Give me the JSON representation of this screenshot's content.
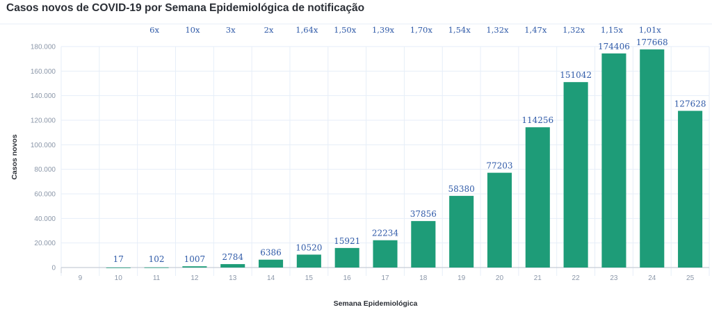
{
  "chart_data": {
    "type": "bar",
    "title": "Casos novos de COVID-19 por Semana Epidemiológica de notificação",
    "xlabel": "Semana Epidemiológica",
    "ylabel": "Casos novos",
    "ylim": [
      0,
      180000
    ],
    "yticks": [
      0,
      20000,
      40000,
      60000,
      80000,
      100000,
      120000,
      140000,
      160000,
      180000
    ],
    "ytick_labels": [
      "0",
      "20.000",
      "40.000",
      "60.000",
      "80.000",
      "100.000",
      "120.000",
      "140.000",
      "160.000",
      "180.000"
    ],
    "categories": [
      "9",
      "10",
      "11",
      "12",
      "13",
      "14",
      "15",
      "16",
      "17",
      "18",
      "19",
      "20",
      "21",
      "22",
      "23",
      "24",
      "25"
    ],
    "values": [
      0,
      17,
      102,
      1007,
      2784,
      6386,
      10520,
      15921,
      22234,
      37856,
      58380,
      77203,
      114256,
      151042,
      174406,
      177668,
      127628
    ],
    "value_labels": [
      "",
      "17",
      "102",
      "1007",
      "2784",
      "6386",
      "10520",
      "15921",
      "22234",
      "37856",
      "58380",
      "77203",
      "114256",
      "151042",
      "174406",
      "177668",
      "127628"
    ],
    "growth_labels": [
      "",
      "",
      "6x",
      "10x",
      "3x",
      "2x",
      "1,64x",
      "1,50x",
      "1,39x",
      "1,70x",
      "1,54x",
      "1,32x",
      "1,47x",
      "1,32x",
      "1,15x",
      "1,01x",
      ""
    ],
    "grid": true,
    "bar_color": "#1e9c78",
    "label_color": "#2f5aa8"
  }
}
